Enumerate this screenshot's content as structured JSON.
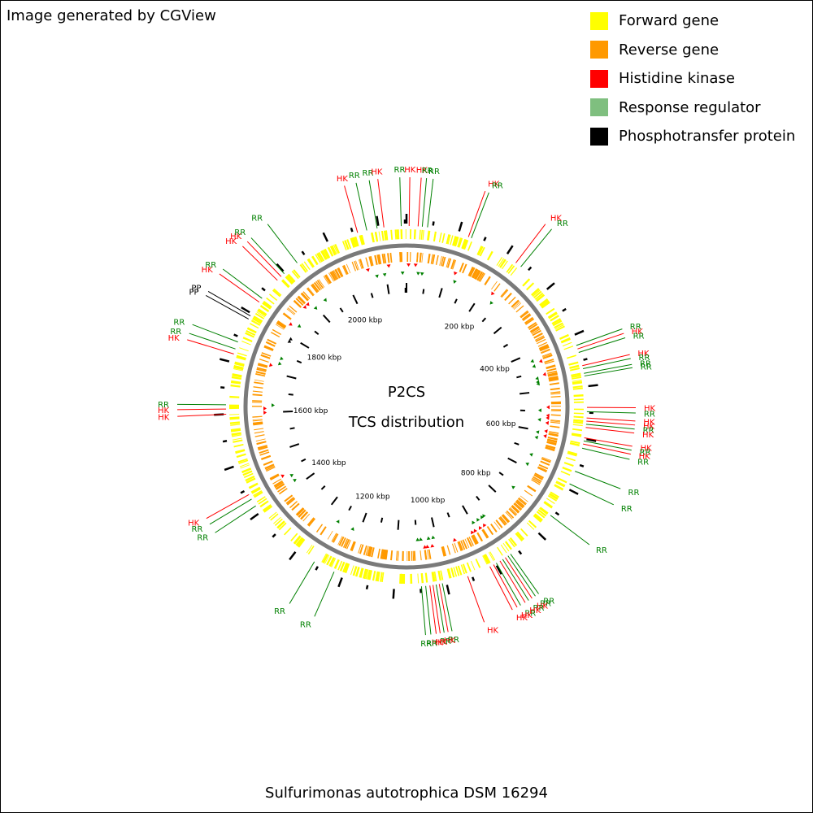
{
  "credit": "Image generated by CGView",
  "legend": [
    {
      "label": "Forward gene",
      "color": "#ffff00"
    },
    {
      "label": "Reverse gene",
      "color": "#ff9900"
    },
    {
      "label": "Histidine kinase",
      "color": "#ff0000"
    },
    {
      "label": "Response regulator",
      "color": "#7fbf7f"
    },
    {
      "label": "Phosphotransfer protein",
      "color": "#000000"
    }
  ],
  "center_title": "P2CS",
  "center_subtitle": "TCS distribution",
  "organism": "Sulfurimonas autotrophica DSM 16294",
  "genome_length_kbp": 2153,
  "ticks": [
    "200 kbp",
    "400 kbp",
    "600 kbp",
    "800 kbp",
    "1000 kbp",
    "1200 kbp",
    "1400 kbp",
    "1600 kbp",
    "1800 kbp",
    "2000 kbp"
  ],
  "feature_colors": {
    "HK": "#ff0000",
    "RR": "#008000",
    "PP": "#000000"
  },
  "features": [
    {
      "label": "RR",
      "pos_kbp": 2077
    },
    {
      "label": "RR",
      "pos_kbp": 2097
    },
    {
      "label": "HK",
      "pos_kbp": 2110
    },
    {
      "label": "RR",
      "pos_kbp": 2143
    },
    {
      "label": "HK",
      "pos_kbp": 5
    },
    {
      "label": "HK",
      "pos_kbp": 22
    },
    {
      "label": "RR",
      "pos_kbp": 30
    },
    {
      "label": "RR",
      "pos_kbp": 40
    },
    {
      "label": "HK",
      "pos_kbp": 2059
    },
    {
      "label": "HK",
      "pos_kbp": 120
    },
    {
      "label": "RR",
      "pos_kbp": 126
    },
    {
      "label": "HK",
      "pos_kbp": 223
    },
    {
      "label": "RR",
      "pos_kbp": 235
    },
    {
      "label": "RR",
      "pos_kbp": 420
    },
    {
      "label": "HK",
      "pos_kbp": 427
    },
    {
      "label": "RR",
      "pos_kbp": 434
    },
    {
      "label": "HK",
      "pos_kbp": 460
    },
    {
      "label": "RR",
      "pos_kbp": 466
    },
    {
      "label": "RR",
      "pos_kbp": 475
    },
    {
      "label": "RR",
      "pos_kbp": 480
    },
    {
      "label": "HK",
      "pos_kbp": 540
    },
    {
      "label": "RR",
      "pos_kbp": 548
    },
    {
      "label": "HK",
      "pos_kbp": 560
    },
    {
      "label": "HK",
      "pos_kbp": 566
    },
    {
      "label": "RR",
      "pos_kbp": 572
    },
    {
      "label": "HK",
      "pos_kbp": 578
    },
    {
      "label": "HK",
      "pos_kbp": 598
    },
    {
      "label": "RR",
      "pos_kbp": 604
    },
    {
      "label": "HK",
      "pos_kbp": 610
    },
    {
      "label": "RR",
      "pos_kbp": 618
    },
    {
      "label": "RR",
      "pos_kbp": 664
    },
    {
      "label": "RR",
      "pos_kbp": 690
    },
    {
      "label": "RR",
      "pos_kbp": 760
    },
    {
      "label": "RR",
      "pos_kbp": 866
    },
    {
      "label": "RR",
      "pos_kbp": 872
    },
    {
      "label": "HK",
      "pos_kbp": 878
    },
    {
      "label": "RR",
      "pos_kbp": 884
    },
    {
      "label": "HK",
      "pos_kbp": 890
    },
    {
      "label": "RR",
      "pos_kbp": 898
    },
    {
      "label": "HK",
      "pos_kbp": 904
    },
    {
      "label": "HK",
      "pos_kbp": 912
    },
    {
      "label": "HK",
      "pos_kbp": 958
    },
    {
      "label": "RR",
      "pos_kbp": 1008
    },
    {
      "label": "HK",
      "pos_kbp": 1014
    },
    {
      "label": "RR",
      "pos_kbp": 1020
    },
    {
      "label": "HK",
      "pos_kbp": 1026
    },
    {
      "label": "HK",
      "pos_kbp": 1032
    },
    {
      "label": "RR",
      "pos_kbp": 1040
    },
    {
      "label": "RR",
      "pos_kbp": 1048
    },
    {
      "label": "RR",
      "pos_kbp": 1218
    },
    {
      "label": "RR",
      "pos_kbp": 1260
    },
    {
      "label": "RR",
      "pos_kbp": 1415
    },
    {
      "label": "RR",
      "pos_kbp": 1430
    },
    {
      "label": "HK",
      "pos_kbp": 1440
    },
    {
      "label": "HK",
      "pos_kbp": 1600
    },
    {
      "label": "HK",
      "pos_kbp": 1610
    },
    {
      "label": "RR",
      "pos_kbp": 1618
    },
    {
      "label": "HK",
      "pos_kbp": 1716
    },
    {
      "label": "RR",
      "pos_kbp": 1726
    },
    {
      "label": "RR",
      "pos_kbp": 1740
    },
    {
      "label": "PP",
      "pos_kbp": 1788
    },
    {
      "label": "PP",
      "pos_kbp": 1795
    },
    {
      "label": "HK",
      "pos_kbp": 1826
    },
    {
      "label": "RR",
      "pos_kbp": 1835
    },
    {
      "label": "HK",
      "pos_kbp": 1880
    },
    {
      "label": "HK",
      "pos_kbp": 1890
    },
    {
      "label": "RR",
      "pos_kbp": 1898
    },
    {
      "label": "RR",
      "pos_kbp": 1930
    }
  ]
}
